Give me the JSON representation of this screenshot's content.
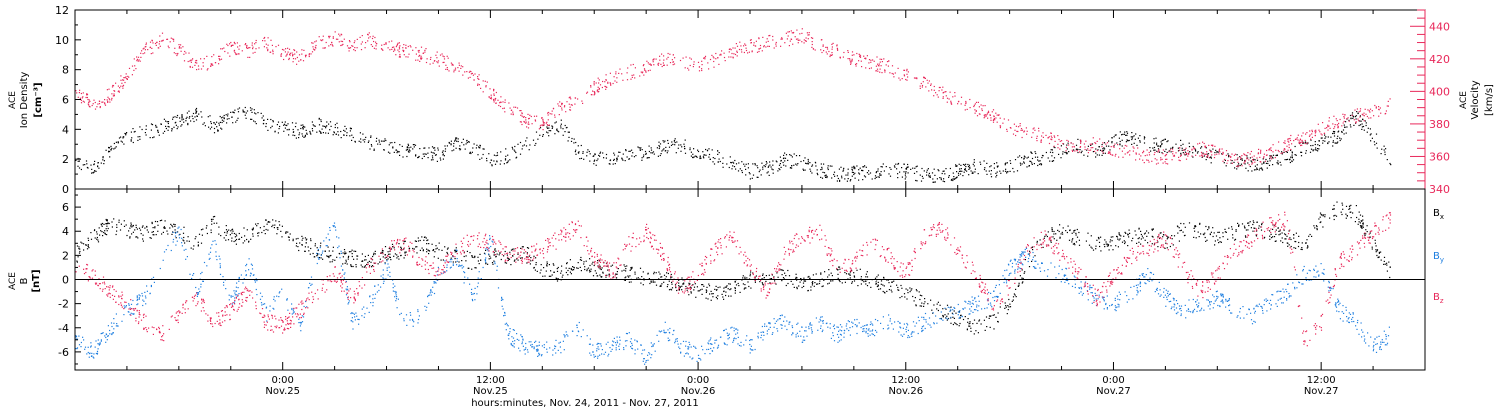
{
  "chart_data": [
    {
      "type": "scatter",
      "panel": "ion-density-velocity",
      "ylabel_lines": [
        "ACE",
        "Ion Density"
      ],
      "yunit": "[cm⁻³]",
      "y2label_lines": [
        "ACE",
        "Velocity"
      ],
      "y2unit": "[km/s]",
      "ylim": [
        0,
        12
      ],
      "yticks": [
        0,
        2,
        4,
        6,
        8,
        10,
        12
      ],
      "y2lim": [
        340,
        450
      ],
      "y2ticks": [
        340,
        360,
        380,
        400,
        420,
        440
      ],
      "series": [
        {
          "axis": "left",
          "color": "#000000",
          "x": [
            0,
            1,
            2,
            3,
            4,
            5,
            6,
            7,
            8,
            9,
            10,
            11,
            12,
            13,
            14,
            15,
            16,
            17,
            18,
            19,
            20,
            21,
            22,
            23,
            24,
            25,
            26,
            27,
            28,
            29,
            30,
            31,
            32,
            33,
            34,
            35,
            36,
            37,
            38,
            39,
            40,
            41,
            42,
            43,
            44,
            45,
            46,
            47,
            48,
            49,
            50,
            51,
            52,
            53,
            54,
            55,
            56,
            57,
            58,
            59,
            60,
            61,
            62,
            63,
            64,
            65,
            66,
            67,
            68,
            69,
            70,
            71,
            72,
            73,
            74,
            75,
            76
          ],
          "values": [
            2.0,
            1.5,
            2.5,
            3.5,
            3.8,
            4.2,
            4.6,
            5.0,
            4.3,
            4.8,
            5.2,
            4.5,
            4.1,
            3.9,
            4.3,
            4.0,
            3.6,
            3.2,
            2.9,
            2.6,
            2.5,
            2.3,
            3.0,
            2.8,
            2.0,
            2.3,
            3.0,
            3.8,
            4.4,
            2.6,
            2.1,
            2.0,
            2.3,
            2.5,
            2.8,
            3.0,
            2.4,
            2.2,
            1.6,
            1.2,
            1.4,
            2.0,
            1.8,
            1.3,
            1.0,
            1.1,
            1.2,
            1.4,
            1.2,
            1.0,
            0.9,
            1.2,
            1.6,
            1.3,
            1.5,
            2.0,
            2.2,
            2.6,
            2.9,
            2.5,
            3.3,
            3.5,
            3.0,
            2.9,
            2.8,
            2.5,
            2.1,
            1.9,
            1.7,
            1.8,
            2.2,
            2.8,
            3.1,
            3.6,
            5.0,
            3.5,
            2.0
          ]
        },
        {
          "axis": "right",
          "color": "#e8285a",
          "x": [
            0,
            1,
            2,
            3,
            4,
            5,
            6,
            7,
            8,
            9,
            10,
            11,
            12,
            13,
            14,
            15,
            16,
            17,
            18,
            19,
            20,
            21,
            22,
            23,
            24,
            25,
            26,
            27,
            28,
            29,
            30,
            31,
            32,
            33,
            34,
            35,
            36,
            37,
            38,
            39,
            40,
            41,
            42,
            43,
            44,
            45,
            46,
            47,
            48,
            49,
            50,
            51,
            52,
            53,
            54,
            55,
            56,
            57,
            58,
            59,
            60,
            61,
            62,
            63,
            64,
            65,
            66,
            67,
            68,
            69,
            70,
            71,
            72,
            73,
            74,
            75,
            76
          ],
          "values": [
            400,
            392,
            398,
            410,
            425,
            432,
            426,
            415,
            420,
            427,
            425,
            430,
            423,
            421,
            430,
            433,
            428,
            432,
            428,
            425,
            423,
            420,
            415,
            410,
            400,
            390,
            382,
            380,
            390,
            395,
            403,
            408,
            412,
            415,
            420,
            418,
            416,
            420,
            425,
            428,
            430,
            432,
            435,
            428,
            425,
            420,
            418,
            415,
            410,
            405,
            400,
            395,
            390,
            385,
            378,
            375,
            372,
            368,
            366,
            368,
            365,
            362,
            360,
            360,
            362,
            365,
            362,
            358,
            360,
            362,
            368,
            372,
            378,
            382,
            385,
            388,
            392
          ]
        }
      ]
    },
    {
      "type": "scatter",
      "panel": "magnetic-field",
      "ylabel_lines": [
        "ACE",
        "B"
      ],
      "yunit": "[nT]",
      "ylim": [
        -7.5,
        7.5
      ],
      "yticks": [
        -6,
        -4,
        -2,
        0,
        2,
        4,
        6
      ],
      "zero_line": true,
      "series": [
        {
          "name": "B",
          "sub": "x",
          "color": "#000000",
          "x": [
            0,
            1,
            2,
            3,
            4,
            5,
            6,
            7,
            8,
            9,
            10,
            11,
            12,
            13,
            14,
            15,
            16,
            17,
            18,
            19,
            20,
            21,
            22,
            23,
            24,
            25,
            26,
            27,
            28,
            29,
            30,
            31,
            32,
            33,
            34,
            35,
            36,
            37,
            38,
            39,
            40,
            41,
            42,
            43,
            44,
            45,
            46,
            47,
            48,
            49,
            50,
            51,
            52,
            53,
            54,
            55,
            56,
            57,
            58,
            59,
            60,
            61,
            62,
            63,
            64,
            65,
            66,
            67,
            68,
            69,
            70,
            71,
            72,
            73,
            74,
            75,
            76
          ],
          "values": [
            2.0,
            3.5,
            4.6,
            4.2,
            3.8,
            4.5,
            4.0,
            3.0,
            4.8,
            3.6,
            3.8,
            4.4,
            4.2,
            3.0,
            2.5,
            2.0,
            1.8,
            1.5,
            2.2,
            2.5,
            3.0,
            2.4,
            2.0,
            1.5,
            2.0,
            1.8,
            2.2,
            1.0,
            0.5,
            1.5,
            1.0,
            0.8,
            0.5,
            0.2,
            0.0,
            -0.5,
            -0.8,
            -1.2,
            -0.6,
            0.0,
            0.4,
            0.2,
            -0.4,
            0.1,
            0.5,
            0.3,
            0.0,
            -0.5,
            -1.0,
            -1.8,
            -2.5,
            -3.2,
            -4.0,
            -3.5,
            -2.0,
            1.5,
            3.5,
            4.0,
            3.5,
            3.0,
            3.2,
            3.5,
            3.8,
            3.0,
            4.2,
            4.0,
            3.5,
            4.0,
            4.4,
            4.0,
            3.5,
            3.0,
            5.0,
            6.0,
            5.5,
            3.0,
            0.5
          ]
        },
        {
          "name": "B",
          "sub": "y",
          "color": "#1f7fe0",
          "x": [
            0,
            1,
            2,
            3,
            4,
            5,
            6,
            7,
            8,
            9,
            10,
            11,
            12,
            13,
            14,
            15,
            16,
            17,
            18,
            19,
            20,
            21,
            22,
            23,
            24,
            25,
            26,
            27,
            28,
            29,
            30,
            31,
            32,
            33,
            34,
            35,
            36,
            37,
            38,
            39,
            40,
            41,
            42,
            43,
            44,
            45,
            46,
            47,
            48,
            49,
            50,
            51,
            52,
            53,
            54,
            55,
            56,
            57,
            58,
            59,
            60,
            61,
            62,
            63,
            64,
            65,
            66,
            67,
            68,
            69,
            70,
            71,
            72,
            73,
            74,
            75,
            76
          ],
          "values": [
            -5.0,
            -6.0,
            -4.0,
            -2.5,
            -1.5,
            2.0,
            4.0,
            -1.0,
            3.0,
            -2.0,
            1.5,
            -3.0,
            -1.0,
            -4.0,
            2.0,
            4.5,
            -3.5,
            -2.0,
            1.0,
            -3.5,
            -3.0,
            0.5,
            2.0,
            -1.5,
            3.5,
            -4.5,
            -5.5,
            -5.8,
            -5.5,
            -4.0,
            -6.0,
            -5.5,
            -5.0,
            -6.5,
            -4.0,
            -5.5,
            -6.2,
            -5.0,
            -4.5,
            -5.5,
            -4.0,
            -3.5,
            -4.5,
            -3.5,
            -4.5,
            -3.8,
            -4.0,
            -3.5,
            -4.2,
            -3.5,
            -3.0,
            -2.5,
            -2.0,
            -1.5,
            1.0,
            2.0,
            1.0,
            0.5,
            -0.5,
            -1.5,
            -2.0,
            -1.0,
            0.5,
            -1.5,
            -2.5,
            -2.0,
            -1.5,
            -2.5,
            -3.0,
            -2.0,
            -1.0,
            0.5,
            1.0,
            -2.5,
            -3.5,
            -5.5,
            -4.5
          ]
        },
        {
          "name": "B",
          "sub": "z",
          "color": "#e8285a",
          "x": [
            0,
            1,
            2,
            3,
            4,
            5,
            6,
            7,
            8,
            9,
            10,
            11,
            12,
            13,
            14,
            15,
            16,
            17,
            18,
            19,
            20,
            21,
            22,
            23,
            24,
            25,
            26,
            27,
            28,
            29,
            30,
            31,
            32,
            33,
            34,
            35,
            36,
            37,
            38,
            39,
            40,
            41,
            42,
            43,
            44,
            45,
            46,
            47,
            48,
            49,
            50,
            51,
            52,
            53,
            54,
            55,
            56,
            57,
            58,
            59,
            60,
            61,
            62,
            63,
            64,
            65,
            66,
            67,
            68,
            69,
            70,
            71,
            72,
            73,
            74,
            75,
            76
          ],
          "values": [
            1.0,
            0.5,
            -1.0,
            -2.0,
            -3.5,
            -4.5,
            -3.0,
            -1.5,
            -3.5,
            -2.5,
            -1.0,
            -3.5,
            -3.8,
            -2.5,
            -1.0,
            0.5,
            -1.5,
            1.0,
            2.5,
            3.0,
            1.5,
            0.5,
            2.5,
            3.5,
            3.0,
            2.0,
            2.0,
            2.5,
            3.5,
            4.5,
            2.0,
            0.5,
            3.0,
            4.0,
            2.0,
            -1.0,
            0.5,
            2.5,
            3.5,
            1.0,
            -1.0,
            2.5,
            3.5,
            4.0,
            1.0,
            1.5,
            3.0,
            2.0,
            0.5,
            3.5,
            4.5,
            2.5,
            0.5,
            -2.0,
            -0.5,
            2.5,
            3.5,
            2.0,
            0.5,
            -1.5,
            0.5,
            2.0,
            2.5,
            3.5,
            1.0,
            -1.0,
            0.5,
            2.5,
            3.5,
            4.5,
            5.0,
            -5.0,
            -3.5,
            1.5,
            2.5,
            4.0,
            5.0
          ]
        }
      ]
    }
  ],
  "xaxis": {
    "ticks": [
      {
        "x": 12,
        "line1": "0:00",
        "line2": "Nov.25"
      },
      {
        "x": 24,
        "line1": "12:00",
        "line2": "Nov.25"
      },
      {
        "x": 36,
        "line1": "0:00",
        "line2": "Nov.26"
      },
      {
        "x": 48,
        "line1": "12:00",
        "line2": "Nov.26"
      },
      {
        "x": 60,
        "line1": "0:00",
        "line2": "Nov.27"
      },
      {
        "x": 72,
        "line1": "12:00",
        "line2": "Nov.27"
      }
    ],
    "xlim": [
      0,
      78
    ],
    "xlabel": "hours:minutes, Nov. 24, 2011 - Nov. 27, 2011"
  }
}
